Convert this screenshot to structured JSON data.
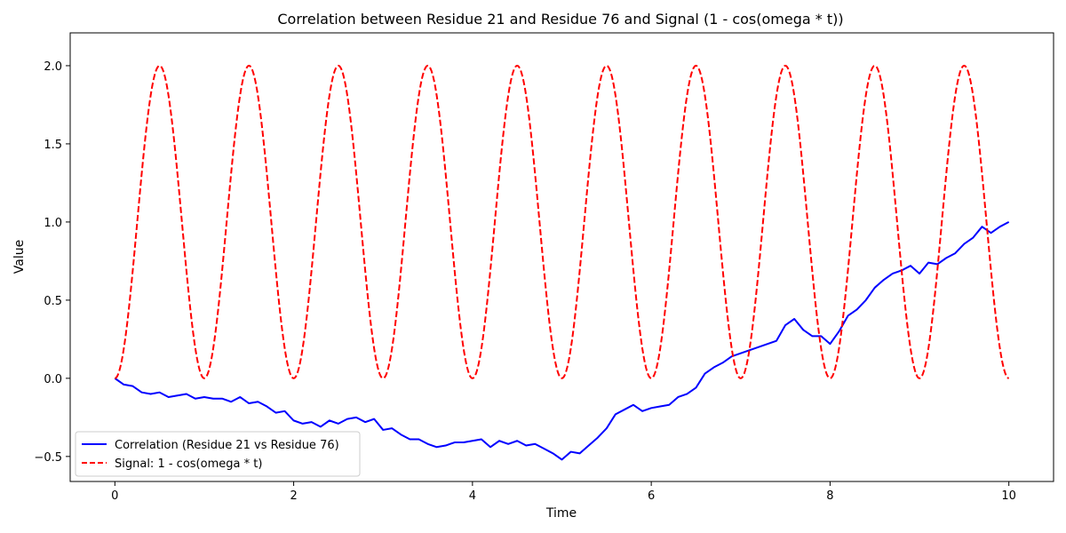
{
  "chart_data": {
    "type": "line",
    "title": "Correlation between Residue 21 and Residue 76 and Signal (1 - cos(omega * t))",
    "xlabel": "Time",
    "ylabel": "Value",
    "xlim": [
      -0.5,
      10.5
    ],
    "ylim": [
      -0.66,
      2.21
    ],
    "xticks": [
      0,
      2,
      4,
      6,
      8,
      10
    ],
    "xtick_labels": [
      "0",
      "2",
      "4",
      "6",
      "8",
      "10"
    ],
    "yticks": [
      -0.5,
      0.0,
      0.5,
      1.0,
      1.5,
      2.0
    ],
    "ytick_labels": [
      "−0.5",
      "0.0",
      "0.5",
      "1.0",
      "1.5",
      "2.0"
    ],
    "grid": false,
    "legend_position": "lower-left",
    "series": [
      {
        "name": "Correlation (Residue 21 vs Residue 76)",
        "color": "#0000ff",
        "style": "solid",
        "x": [
          0,
          0.1,
          0.2,
          0.3,
          0.4,
          0.5,
          0.6,
          0.7,
          0.8,
          0.9,
          1.0,
          1.1,
          1.2,
          1.3,
          1.4,
          1.5,
          1.6,
          1.7,
          1.8,
          1.9,
          2.0,
          2.1,
          2.2,
          2.3,
          2.4,
          2.5,
          2.6,
          2.7,
          2.8,
          2.9,
          3.0,
          3.1,
          3.2,
          3.3,
          3.4,
          3.5,
          3.6,
          3.7,
          3.8,
          3.9,
          4.0,
          4.1,
          4.2,
          4.3,
          4.4,
          4.5,
          4.6,
          4.7,
          4.8,
          4.9,
          5.0,
          5.1,
          5.2,
          5.3,
          5.4,
          5.5,
          5.6,
          5.7,
          5.8,
          5.9,
          6.0,
          6.1,
          6.2,
          6.3,
          6.4,
          6.5,
          6.6,
          6.7,
          6.8,
          6.9,
          7.0,
          7.1,
          7.2,
          7.3,
          7.4,
          7.5,
          7.6,
          7.7,
          7.8,
          7.9,
          8.0,
          8.1,
          8.2,
          8.3,
          8.4,
          8.5,
          8.6,
          8.7,
          8.8,
          8.9,
          9.0,
          9.1,
          9.2,
          9.3,
          9.4,
          9.5,
          9.6,
          9.7,
          9.8,
          9.9,
          10.0
        ],
        "y": [
          0.0,
          -0.04,
          -0.05,
          -0.09,
          -0.1,
          -0.09,
          -0.12,
          -0.11,
          -0.1,
          -0.13,
          -0.12,
          -0.13,
          -0.13,
          -0.15,
          -0.12,
          -0.16,
          -0.15,
          -0.18,
          -0.22,
          -0.21,
          -0.27,
          -0.29,
          -0.28,
          -0.31,
          -0.27,
          -0.29,
          -0.26,
          -0.25,
          -0.28,
          -0.26,
          -0.33,
          -0.32,
          -0.36,
          -0.39,
          -0.39,
          -0.42,
          -0.44,
          -0.43,
          -0.41,
          -0.41,
          -0.4,
          -0.39,
          -0.44,
          -0.4,
          -0.42,
          -0.4,
          -0.43,
          -0.42,
          -0.45,
          -0.48,
          -0.52,
          -0.47,
          -0.48,
          -0.43,
          -0.38,
          -0.32,
          -0.23,
          -0.2,
          -0.17,
          -0.21,
          -0.19,
          -0.18,
          -0.17,
          -0.12,
          -0.1,
          -0.06,
          0.03,
          0.07,
          0.1,
          0.14,
          0.16,
          0.18,
          0.2,
          0.22,
          0.24,
          0.34,
          0.38,
          0.31,
          0.27,
          0.27,
          0.22,
          0.3,
          0.4,
          0.44,
          0.5,
          0.58,
          0.63,
          0.67,
          0.69,
          0.72,
          0.67,
          0.74,
          0.73,
          0.77,
          0.8,
          0.86,
          0.9,
          0.97,
          0.93,
          0.97,
          1.0
        ]
      },
      {
        "name": "Signal: 1 - cos(omega * t)",
        "color": "#ff0000",
        "style": "dashed",
        "function": "1 - cos(2*pi*t)",
        "omega": 6.2832,
        "t_start": 0,
        "t_end": 10
      }
    ]
  }
}
